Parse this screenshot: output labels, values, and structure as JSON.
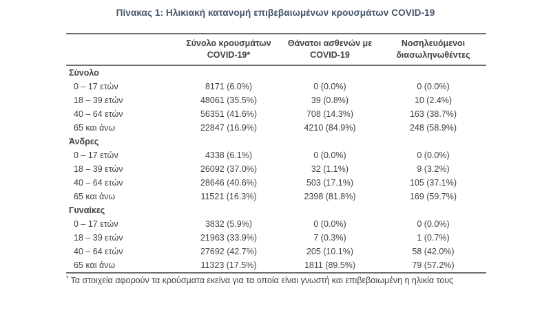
{
  "title": "Πίνακας 1: Ηλικιακή κατανομή επιβεβαιωμένων κρουσμάτων COVID-19",
  "columns": [
    {
      "line1": "Σύνολο κρουσμάτων",
      "line2": "COVID-19*"
    },
    {
      "line1": "Θάνατοι ασθενών με",
      "line2": "COVID-19"
    },
    {
      "line1": "Νοσηλευόμενοι",
      "line2": "διασωληνωθέντες"
    }
  ],
  "sections": [
    {
      "label": "Σύνολο",
      "rows": [
        {
          "age": "0 – 17 ετών",
          "cases": "8171 (6.0%)",
          "deaths": "0 (0.0%)",
          "intubated": "0 (0.0%)"
        },
        {
          "age": "18 – 39 ετών",
          "cases": "48061 (35.5%)",
          "deaths": "39 (0.8%)",
          "intubated": "10 (2.4%)"
        },
        {
          "age": "40 – 64 ετών",
          "cases": "56351 (41.6%)",
          "deaths": "708 (14.3%)",
          "intubated": "163 (38.7%)"
        },
        {
          "age": "65 και άνω",
          "cases": "22847 (16.9%)",
          "deaths": "4210 (84.9%)",
          "intubated": "248 (58.9%)"
        }
      ]
    },
    {
      "label": "Άνδρες",
      "rows": [
        {
          "age": "0 – 17 ετών",
          "cases": "4338 (6.1%)",
          "deaths": "0 (0.0%)",
          "intubated": "0 (0.0%)"
        },
        {
          "age": "18 – 39 ετών",
          "cases": "26092 (37.0%)",
          "deaths": "32 (1.1%)",
          "intubated": "9 (3.2%)"
        },
        {
          "age": "40 – 64 ετών",
          "cases": "28646 (40.6%)",
          "deaths": "503 (17.1%)",
          "intubated": "105 (37.1%)"
        },
        {
          "age": "65 και άνω",
          "cases": "11521 (16.3%)",
          "deaths": "2398 (81.8%)",
          "intubated": "169 (59.7%)"
        }
      ]
    },
    {
      "label": "Γυναίκες",
      "rows": [
        {
          "age": "0 – 17 ετών",
          "cases": "3832 (5.9%)",
          "deaths": "0 (0.0%)",
          "intubated": "0 (0.0%)"
        },
        {
          "age": "18 – 39 ετών",
          "cases": "21963 (33.9%)",
          "deaths": "7 (0.3%)",
          "intubated": "1 (0.7%)"
        },
        {
          "age": "40 – 64 ετών",
          "cases": "27692 (42.7%)",
          "deaths": "205 (10.1%)",
          "intubated": "58 (42.0%)"
        },
        {
          "age": "65 και άνω",
          "cases": "11323 (17.5%)",
          "deaths": "1811 (89.5%)",
          "intubated": "79 (57.2%)"
        }
      ]
    }
  ],
  "footnote_symbol": "*",
  "footnote": "Τα στοιχεία αφορούν τα κρούσματα εκείνα για τα οποία είναι γνωστή και επιβεβαιωμένη η ηλικία τους",
  "colors": {
    "title": "#44546a",
    "text": "#414042",
    "rule": "#6d6e71",
    "background": "#ffffff"
  }
}
